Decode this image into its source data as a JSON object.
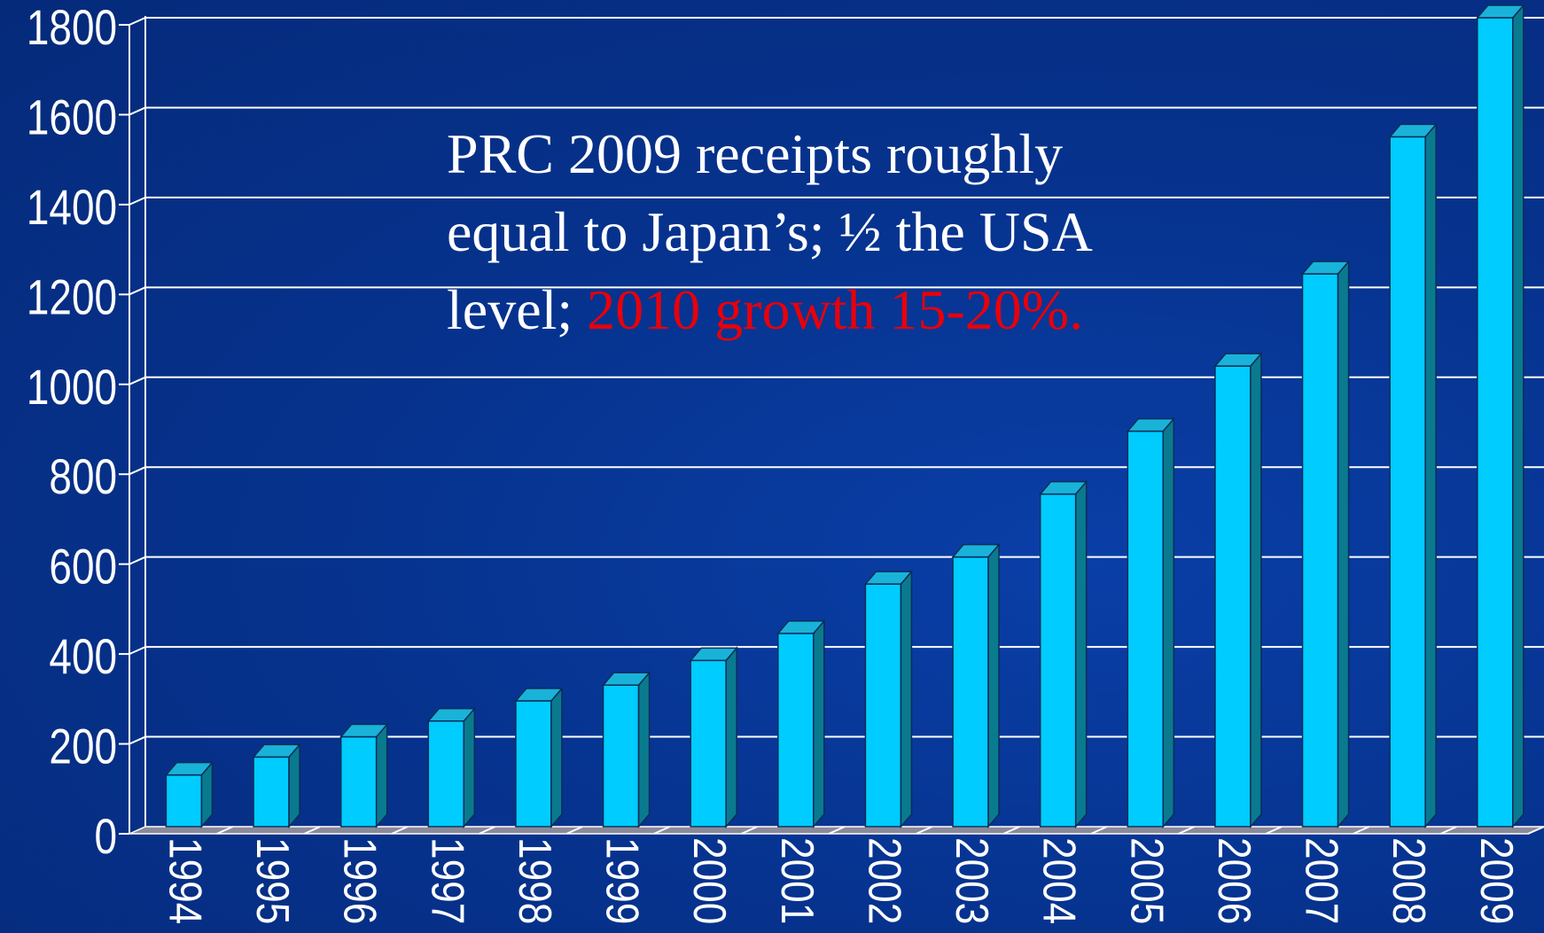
{
  "colors": {
    "background": "#06338f",
    "bar_front": "#00ccff",
    "bar_top": "#19b3d9",
    "bar_side": "#0a7a8f",
    "gridline": "#ffffff",
    "text": "#ffffff",
    "highlight": "#e8000b"
  },
  "chart_data": {
    "type": "bar",
    "categories": [
      "1994",
      "1995",
      "1996",
      "1997",
      "1998",
      "1999",
      "2000",
      "2001",
      "2002",
      "2003",
      "2004",
      "2005",
      "2006",
      "2007",
      "2008",
      "2009"
    ],
    "values": [
      115,
      155,
      200,
      235,
      280,
      315,
      370,
      430,
      540,
      600,
      740,
      880,
      1025,
      1230,
      1535,
      1800
    ],
    "ylim": [
      0,
      1800
    ],
    "yticks": [
      0,
      200,
      400,
      600,
      800,
      1000,
      1200,
      1400,
      1600,
      1800
    ],
    "grid": true,
    "title": "",
    "xlabel": "",
    "ylabel": "",
    "annotation": {
      "line1": "PRC 2009 receipts roughly",
      "line2": "equal to Japan’s; ½ the USA",
      "line3_prefix": "level; ",
      "line3_highlight": "2010 growth 15-20%."
    }
  }
}
